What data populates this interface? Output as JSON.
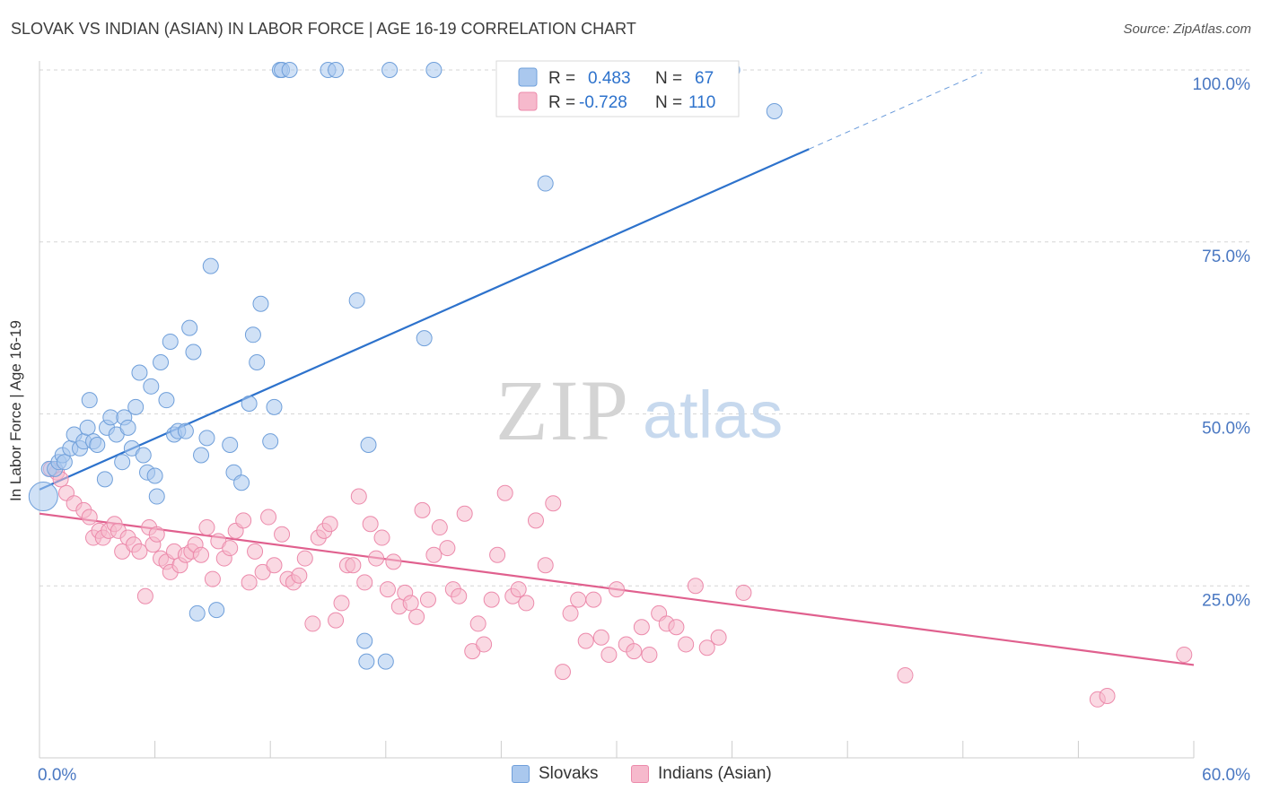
{
  "header": {
    "title": "SLOVAK VS INDIAN (ASIAN) IN LABOR FORCE | AGE 16-19 CORRELATION CHART",
    "source": "Source: ZipAtlas.com"
  },
  "watermark": {
    "zip": "ZIP",
    "atlas": "atlas"
  },
  "legend_top": [
    {
      "r_label": "R =",
      "r_value": "0.483",
      "n_label": "N =",
      "n_value": "67"
    },
    {
      "r_label": "R =",
      "r_value": "-0.728",
      "n_label": "N =",
      "n_value": "110"
    }
  ],
  "legend_bottom": {
    "slovaks": "Slovaks",
    "indians": "Indians (Asian)"
  },
  "colors": {
    "slovak_fill": "#aac8ee",
    "slovak_stroke": "#6f9fda",
    "slovak_line": "#2d72cc",
    "indian_fill": "#f6b9cc",
    "indian_stroke": "#ec8aab",
    "indian_line": "#e0608e",
    "axis_text": "#4a78c2",
    "grid": "#d6d6d6"
  },
  "chart_data": {
    "type": "scatter",
    "title": "SLOVAK VS INDIAN (ASIAN) IN LABOR FORCE | AGE 16-19 CORRELATION CHART",
    "xlabel": "",
    "ylabel": "In Labor Force | Age 16-19",
    "xlim": [
      0,
      60
    ],
    "ylim": [
      0,
      100
    ],
    "x_tick_labels": [
      "0.0%",
      "60.0%"
    ],
    "y_tick_labels": [
      "25.0%",
      "50.0%",
      "75.0%",
      "100.0%"
    ],
    "y_ticks": [
      25,
      50,
      75,
      100
    ],
    "grid": true,
    "legend_position": "top-center",
    "series": [
      {
        "name": "Slovaks",
        "r": 0.483,
        "n": 67,
        "trend": {
          "x0": 0,
          "y0": 39,
          "x1": 40,
          "y1": 88.5,
          "dashed_to_x": 49
        },
        "points": [
          [
            0.2,
            38
          ],
          [
            0.5,
            42
          ],
          [
            0.8,
            42
          ],
          [
            1.0,
            43
          ],
          [
            1.2,
            44
          ],
          [
            1.3,
            43
          ],
          [
            1.6,
            45
          ],
          [
            1.8,
            47
          ],
          [
            2.1,
            45
          ],
          [
            2.3,
            46
          ],
          [
            2.5,
            48
          ],
          [
            2.6,
            52
          ],
          [
            2.8,
            46
          ],
          [
            3.0,
            45.5
          ],
          [
            3.4,
            40.5
          ],
          [
            3.5,
            48
          ],
          [
            3.7,
            49.5
          ],
          [
            4.0,
            47
          ],
          [
            4.3,
            43
          ],
          [
            4.4,
            49.5
          ],
          [
            4.6,
            48
          ],
          [
            4.8,
            45
          ],
          [
            5.0,
            51
          ],
          [
            5.2,
            56
          ],
          [
            5.4,
            44
          ],
          [
            5.6,
            41.5
          ],
          [
            5.8,
            54
          ],
          [
            6.0,
            41
          ],
          [
            6.1,
            38
          ],
          [
            6.3,
            57.5
          ],
          [
            6.6,
            52
          ],
          [
            6.8,
            60.5
          ],
          [
            7.0,
            47
          ],
          [
            7.2,
            47.5
          ],
          [
            7.6,
            47.5
          ],
          [
            7.8,
            62.5
          ],
          [
            8.0,
            59
          ],
          [
            8.2,
            21
          ],
          [
            8.4,
            44
          ],
          [
            8.7,
            46.5
          ],
          [
            8.9,
            71.5
          ],
          [
            9.2,
            21.5
          ],
          [
            9.9,
            45.5
          ],
          [
            10.1,
            41.5
          ],
          [
            10.5,
            40
          ],
          [
            10.9,
            51.5
          ],
          [
            11.1,
            61.5
          ],
          [
            11.3,
            57.5
          ],
          [
            11.5,
            66
          ],
          [
            12.0,
            46
          ],
          [
            12.2,
            51
          ],
          [
            12.5,
            100
          ],
          [
            12.6,
            100
          ],
          [
            13.0,
            100
          ],
          [
            15.0,
            100
          ],
          [
            15.4,
            100
          ],
          [
            16.5,
            66.5
          ],
          [
            16.9,
            17
          ],
          [
            17.0,
            14
          ],
          [
            17.1,
            45.5
          ],
          [
            18.0,
            14
          ],
          [
            18.2,
            100
          ],
          [
            20.0,
            61
          ],
          [
            20.5,
            100
          ],
          [
            26.3,
            83.5
          ],
          [
            36.0,
            100
          ],
          [
            38.2,
            94
          ]
        ]
      },
      {
        "name": "Indians (Asian)",
        "r": -0.728,
        "n": 110,
        "trend": {
          "x0": 0,
          "y0": 35.5,
          "x1": 60,
          "y1": 13.5
        },
        "points": [
          [
            0.6,
            42
          ],
          [
            0.9,
            41.5
          ],
          [
            1.1,
            40.5
          ],
          [
            1.4,
            38.5
          ],
          [
            1.8,
            37
          ],
          [
            2.3,
            36
          ],
          [
            2.6,
            35
          ],
          [
            2.8,
            32
          ],
          [
            3.1,
            33
          ],
          [
            3.3,
            32
          ],
          [
            3.6,
            33
          ],
          [
            3.9,
            34
          ],
          [
            4.1,
            33
          ],
          [
            4.3,
            30
          ],
          [
            4.6,
            32
          ],
          [
            4.9,
            31
          ],
          [
            5.2,
            30
          ],
          [
            5.5,
            23.5
          ],
          [
            5.7,
            33.5
          ],
          [
            5.9,
            31
          ],
          [
            6.1,
            32.5
          ],
          [
            6.3,
            29
          ],
          [
            6.6,
            28.5
          ],
          [
            6.8,
            27
          ],
          [
            7.0,
            30
          ],
          [
            7.3,
            28
          ],
          [
            7.6,
            29.5
          ],
          [
            7.9,
            30
          ],
          [
            8.1,
            31
          ],
          [
            8.4,
            29.5
          ],
          [
            8.7,
            33.5
          ],
          [
            9.0,
            26
          ],
          [
            9.3,
            31.5
          ],
          [
            9.6,
            29
          ],
          [
            9.9,
            30.5
          ],
          [
            10.2,
            33
          ],
          [
            10.6,
            34.5
          ],
          [
            10.9,
            25.5
          ],
          [
            11.2,
            30
          ],
          [
            11.6,
            27
          ],
          [
            11.9,
            35
          ],
          [
            12.2,
            28
          ],
          [
            12.6,
            32.5
          ],
          [
            12.9,
            26
          ],
          [
            13.2,
            25.5
          ],
          [
            13.5,
            26.5
          ],
          [
            13.8,
            29
          ],
          [
            14.2,
            19.5
          ],
          [
            14.5,
            32
          ],
          [
            14.8,
            33
          ],
          [
            15.1,
            34
          ],
          [
            15.4,
            20
          ],
          [
            15.7,
            22.5
          ],
          [
            16.0,
            28
          ],
          [
            16.3,
            28
          ],
          [
            16.6,
            38
          ],
          [
            16.9,
            25.5
          ],
          [
            17.2,
            34
          ],
          [
            17.5,
            29
          ],
          [
            17.8,
            32
          ],
          [
            18.1,
            24.5
          ],
          [
            18.4,
            28.5
          ],
          [
            18.7,
            22
          ],
          [
            19.0,
            24
          ],
          [
            19.3,
            22.5
          ],
          [
            19.6,
            20.5
          ],
          [
            19.9,
            36
          ],
          [
            20.2,
            23
          ],
          [
            20.5,
            29.5
          ],
          [
            20.8,
            33.5
          ],
          [
            21.2,
            30.5
          ],
          [
            21.5,
            24.5
          ],
          [
            21.8,
            23.5
          ],
          [
            22.1,
            35.5
          ],
          [
            22.5,
            15.5
          ],
          [
            22.8,
            19.5
          ],
          [
            23.1,
            16.5
          ],
          [
            23.5,
            23
          ],
          [
            23.8,
            29.5
          ],
          [
            24.2,
            38.5
          ],
          [
            24.6,
            23.5
          ],
          [
            24.9,
            24.5
          ],
          [
            25.3,
            22.5
          ],
          [
            25.8,
            34.5
          ],
          [
            26.3,
            28
          ],
          [
            26.7,
            37
          ],
          [
            27.2,
            12.5
          ],
          [
            27.6,
            21
          ],
          [
            28.0,
            23
          ],
          [
            28.4,
            17
          ],
          [
            28.8,
            23
          ],
          [
            29.2,
            17.5
          ],
          [
            29.6,
            15
          ],
          [
            30.0,
            24.5
          ],
          [
            30.5,
            16.5
          ],
          [
            30.9,
            15.5
          ],
          [
            31.3,
            19
          ],
          [
            31.7,
            15
          ],
          [
            32.2,
            21
          ],
          [
            32.6,
            19.5
          ],
          [
            33.1,
            19
          ],
          [
            33.6,
            16.5
          ],
          [
            34.1,
            25
          ],
          [
            34.7,
            16
          ],
          [
            35.3,
            17.5
          ],
          [
            36.6,
            24
          ],
          [
            45.0,
            12
          ],
          [
            55.0,
            8.5
          ],
          [
            55.5,
            9
          ],
          [
            59.5,
            15
          ]
        ]
      }
    ]
  }
}
